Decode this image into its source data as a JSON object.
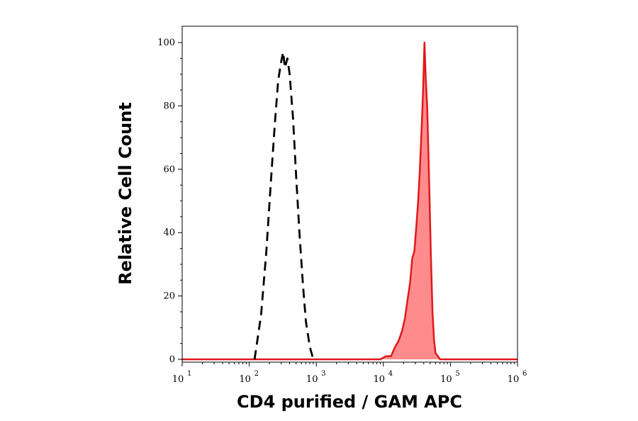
{
  "chart_data": {
    "type": "area",
    "title": "",
    "xlabel": "CD4 purified / GAM APC",
    "ylabel": "Relative Cell Count",
    "xscale": "log",
    "xlim": [
      10,
      1000000
    ],
    "ylim": [
      0,
      100
    ],
    "grid": false,
    "legend": "none",
    "x_ticks": [
      {
        "base": "10",
        "exp": "1",
        "value": 10
      },
      {
        "base": "10",
        "exp": "2",
        "value": 100
      },
      {
        "base": "10",
        "exp": "3",
        "value": 1000
      },
      {
        "base": "10",
        "exp": "4",
        "value": 10000
      },
      {
        "base": "10",
        "exp": "5",
        "value": 100000
      },
      {
        "base": "10",
        "exp": "6",
        "value": 1000000
      }
    ],
    "y_ticks": [
      {
        "label": "0",
        "value": 0
      },
      {
        "label": "20",
        "value": 20
      },
      {
        "label": "40",
        "value": 40
      },
      {
        "label": "60",
        "value": 60
      },
      {
        "label": "80",
        "value": 80
      },
      {
        "label": "100",
        "value": 100
      }
    ],
    "series": [
      {
        "style": "dashed-black",
        "color": "#000000",
        "x": [
          120,
          150,
          180,
          210,
          240,
          270,
          300,
          320,
          340,
          370,
          400,
          450,
          500,
          560,
          630,
          700,
          800,
          900,
          1000
        ],
        "y": [
          0,
          14,
          34,
          56,
          74,
          88,
          94,
          97,
          92,
          95,
          90,
          76,
          58,
          40,
          24,
          12,
          4,
          0,
          0
        ]
      },
      {
        "style": "filled-red",
        "color": "#e0181b",
        "fill": "#ff8c8c",
        "x": [
          10,
          9000,
          11000,
          13000,
          15000,
          17000,
          19000,
          21000,
          23000,
          25000,
          27000,
          29000,
          31000,
          33000,
          35000,
          37000,
          39000,
          41000,
          43000,
          45000,
          48000,
          51000,
          54000,
          57000,
          60000,
          65000,
          70000,
          80000,
          1000000
        ],
        "y": [
          0,
          0,
          1,
          1,
          4,
          6,
          9,
          13,
          19,
          24,
          32,
          34,
          42,
          50,
          60,
          72,
          84,
          100,
          88,
          80,
          58,
          34,
          15,
          6,
          2,
          1,
          0,
          0,
          0
        ]
      }
    ]
  }
}
